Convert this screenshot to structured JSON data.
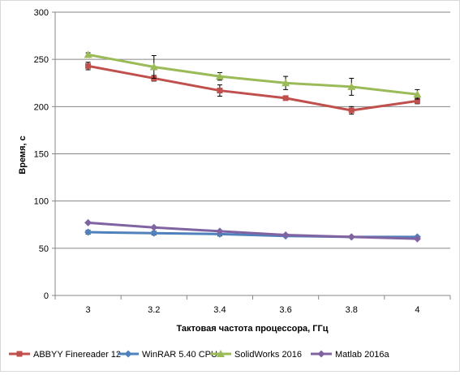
{
  "chart_data": {
    "type": "line",
    "xlabel": "Тактовая частота процессора, ГГц",
    "ylabel": "Время, с",
    "categories": [
      "3",
      "3.2",
      "3.4",
      "3.6",
      "3.8",
      "4"
    ],
    "ylim": [
      0,
      300
    ],
    "yticks": [
      0,
      50,
      100,
      150,
      200,
      250,
      300
    ],
    "grid": true,
    "legend_position": "bottom",
    "series": [
      {
        "name": "ABBYY Finereader 12",
        "color": "#c0504d",
        "marker": "square",
        "values": [
          243,
          230,
          217,
          209,
          196,
          206
        ],
        "error": [
          4,
          3,
          6,
          2,
          4,
          3
        ]
      },
      {
        "name": "WinRAR 5.40 CPU",
        "color": "#4f81bd",
        "marker": "diamond",
        "values": [
          67,
          66,
          65,
          63,
          62,
          62
        ],
        "error": [
          2,
          2,
          2,
          1,
          1,
          1
        ]
      },
      {
        "name": "SolidWorks 2016",
        "color": "#9bbb59",
        "marker": "triangle",
        "values": [
          255,
          242,
          232,
          225,
          221,
          213
        ],
        "error": [
          2,
          12,
          4,
          7,
          9,
          5
        ]
      },
      {
        "name": "Matlab 2016a",
        "color": "#8064a2",
        "marker": "diamond",
        "values": [
          77,
          72,
          68,
          64,
          62,
          60
        ],
        "error": [
          0,
          0,
          0,
          0,
          0,
          0
        ]
      }
    ]
  }
}
